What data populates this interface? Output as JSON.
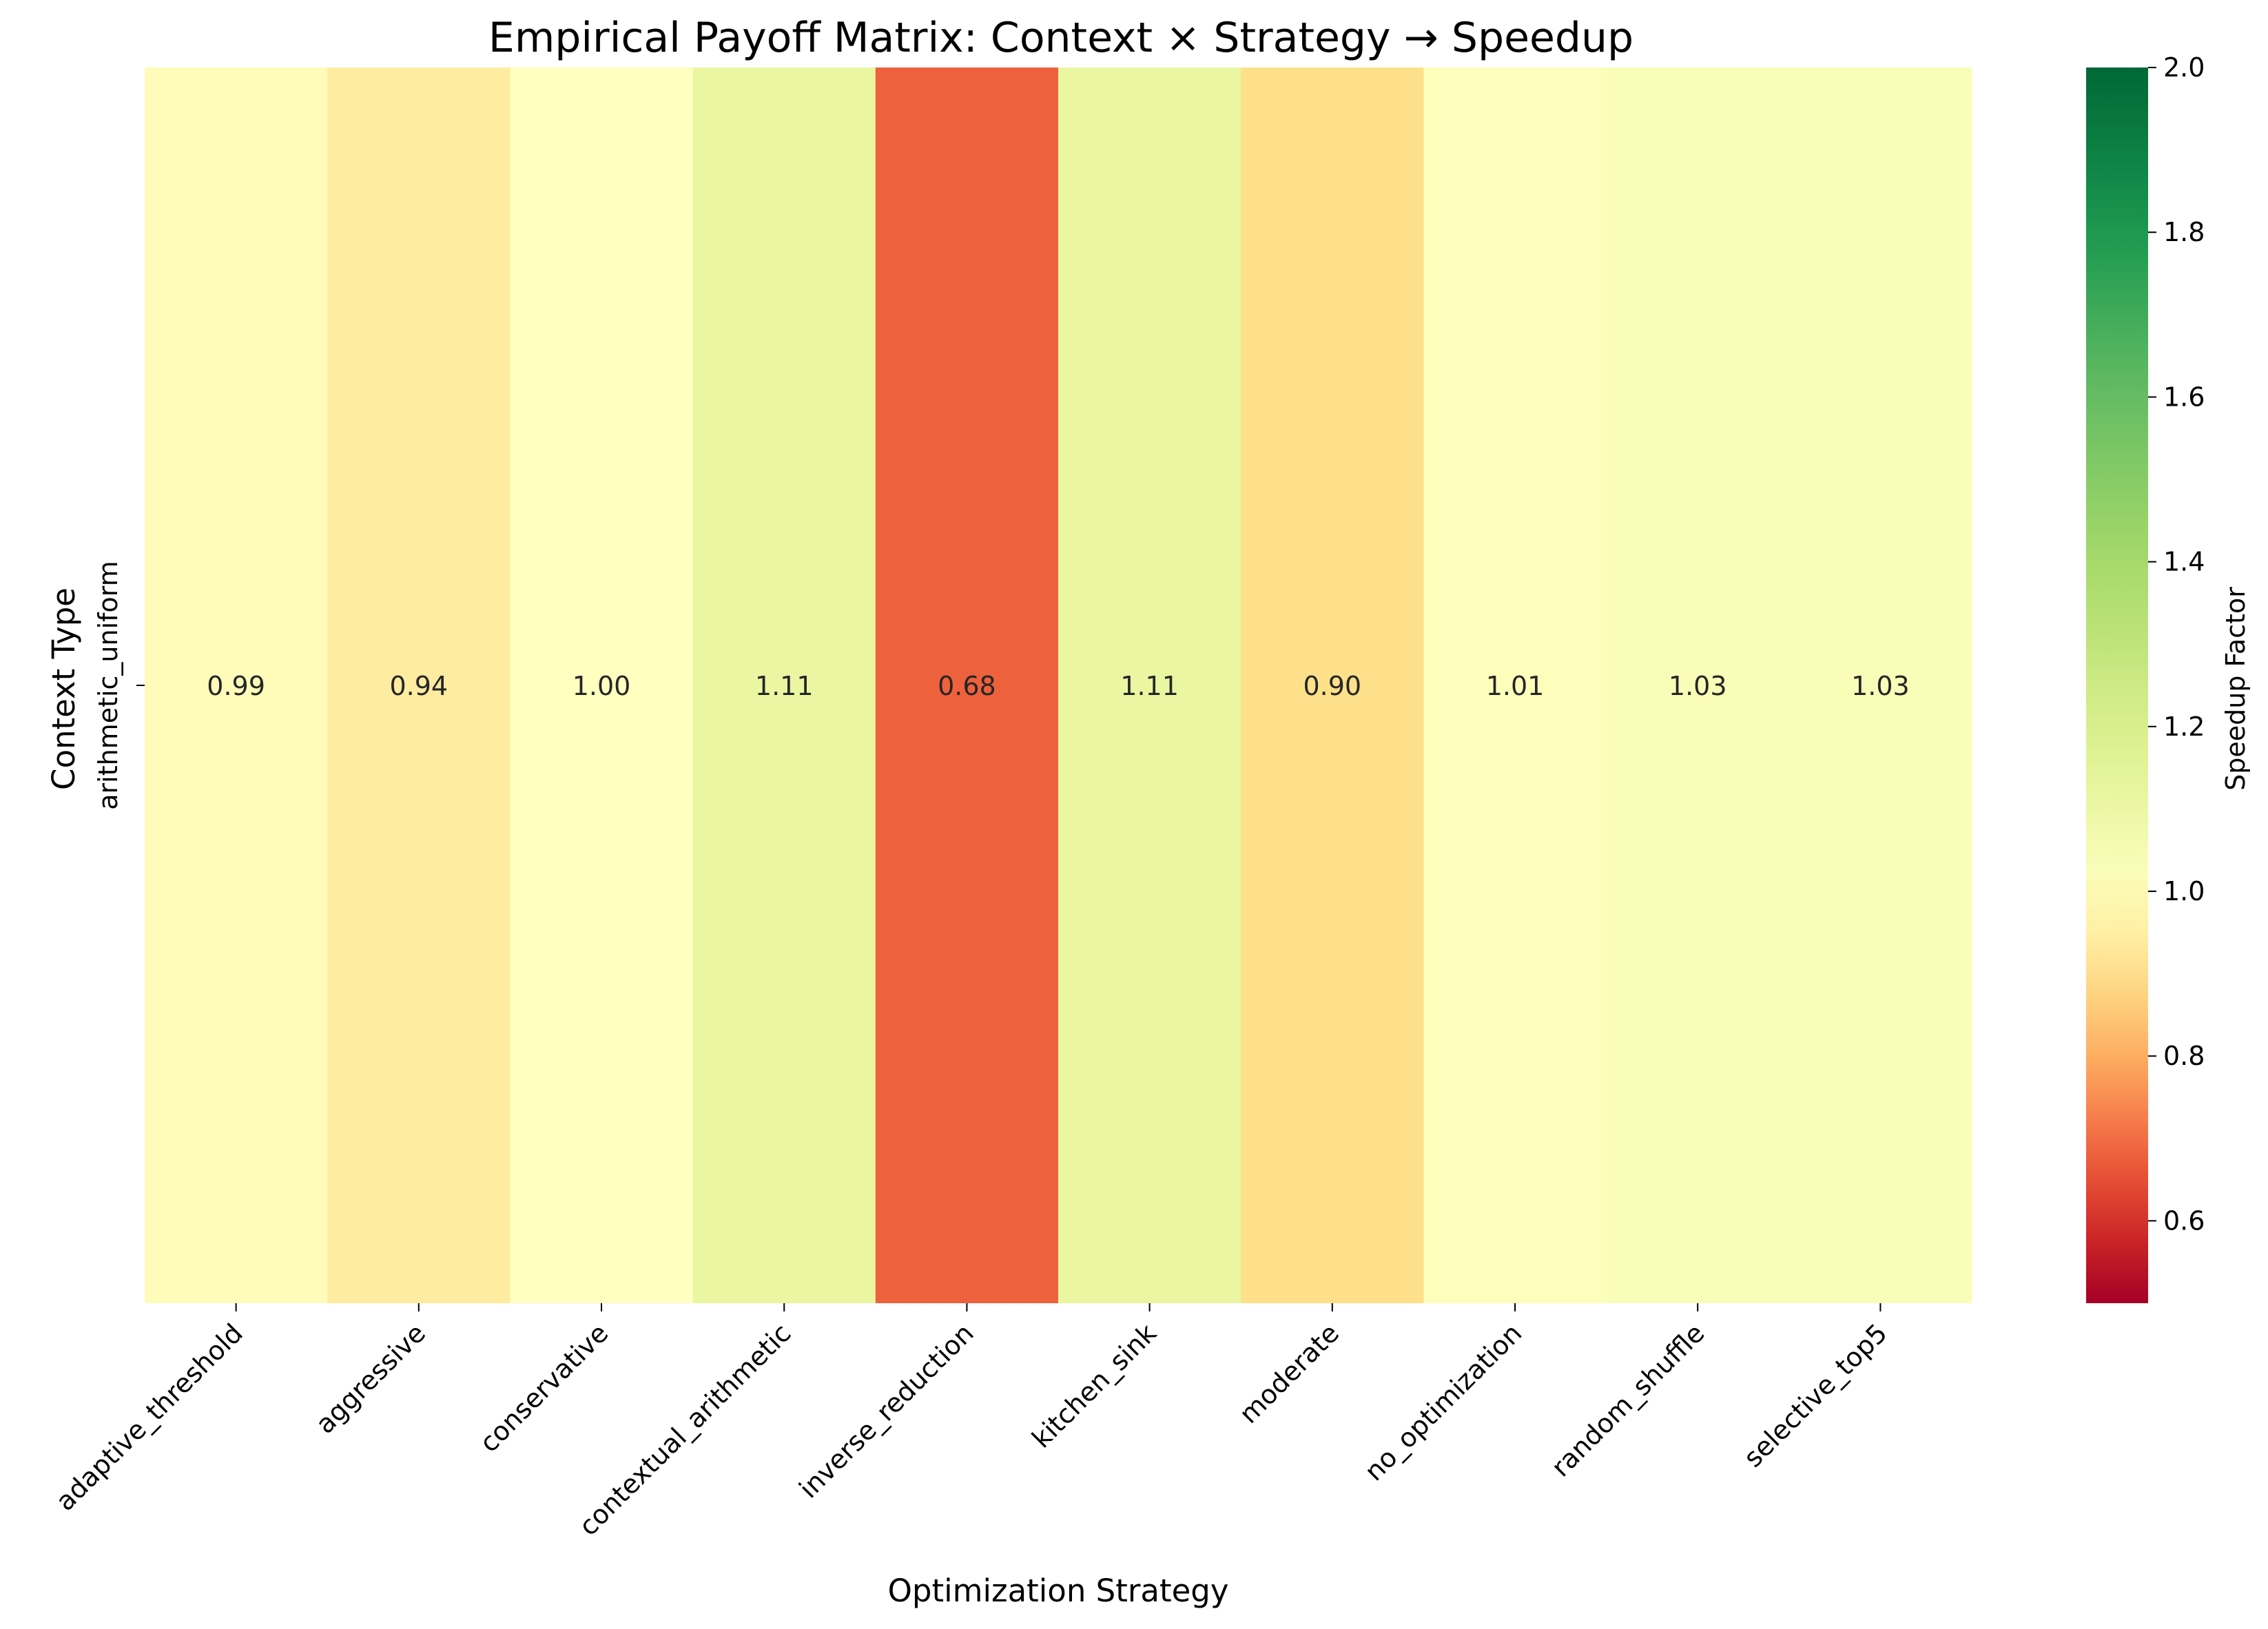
{
  "chart_data": {
    "type": "heatmap",
    "title": "Empirical Payoff Matrix: Context × Strategy → Speedup",
    "xlabel": "Optimization Strategy",
    "ylabel": "Context Type",
    "colorbar_label": "Speedup Factor",
    "rows": [
      "arithmetic_uniform"
    ],
    "columns": [
      "adaptive_threshold",
      "aggressive",
      "conservative",
      "contextual_arithmetic",
      "inverse_reduction",
      "kitchen_sink",
      "moderate",
      "no_optimization",
      "random_shuffle",
      "selective_top5"
    ],
    "values": [
      [
        0.99,
        0.94,
        1.0,
        1.11,
        0.68,
        1.11,
        0.9,
        1.01,
        1.03,
        1.03
      ]
    ],
    "value_labels": [
      [
        "0.99",
        "0.94",
        "1.00",
        "1.11",
        "0.68",
        "1.11",
        "0.90",
        "1.01",
        "1.03",
        "1.03"
      ]
    ],
    "color_range": [
      0.5,
      2.0
    ],
    "colorbar_ticks": [
      "0.6",
      "0.8",
      "1.0",
      "1.2",
      "1.4",
      "1.6",
      "1.8",
      "2.0"
    ],
    "colormap": "RdYlGn"
  }
}
